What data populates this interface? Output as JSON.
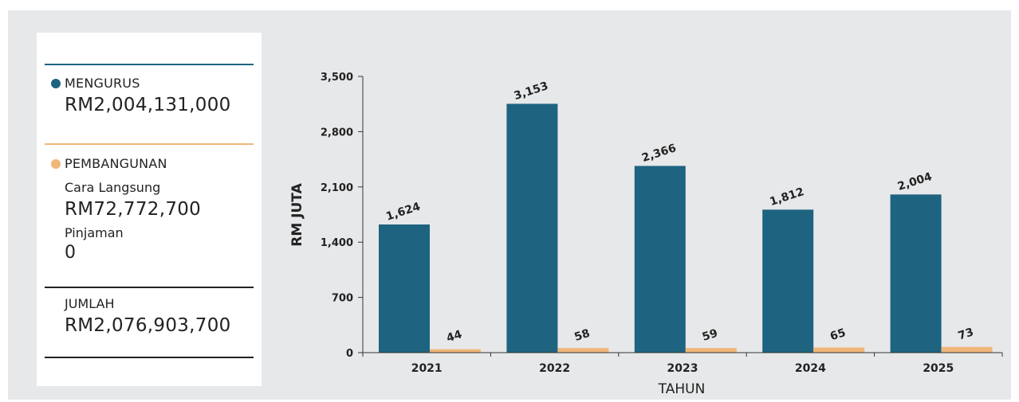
{
  "summary": {
    "mengurus": {
      "label": "MENGURUS",
      "value": "RM2,004,131,000"
    },
    "pembangunan": {
      "label": "PEMBANGUNAN",
      "cara_langsung_label": "Cara Langsung",
      "cara_langsung_value": "RM72,772,700",
      "pinjaman_label": "Pinjaman",
      "pinjaman_value": "0"
    },
    "jumlah": {
      "label": "JUMLAH",
      "value": "RM2,076,903,700"
    }
  },
  "colors": {
    "mengurus": "#1e6480",
    "pembangunan": "#f0b679"
  },
  "chart_data": {
    "type": "bar",
    "categories": [
      "2021",
      "2022",
      "2023",
      "2024",
      "2025"
    ],
    "series": [
      {
        "values": [
          1624,
          3153,
          2366,
          1812,
          2004
        ],
        "labels": [
          "1,624",
          "3,153",
          "2,366",
          "1,812",
          "2,004"
        ]
      },
      {
        "values": [
          44,
          58,
          59,
          65,
          73
        ],
        "labels": [
          "44",
          "58",
          "59",
          "65",
          "73"
        ]
      }
    ],
    "xlabel": "TAHUN",
    "ylabel": "RM JUTA",
    "ylim": [
      0,
      3500
    ],
    "yticks": [
      "0",
      "700",
      "1,400",
      "2,100",
      "2,800",
      "3,500"
    ],
    "grid": false
  }
}
